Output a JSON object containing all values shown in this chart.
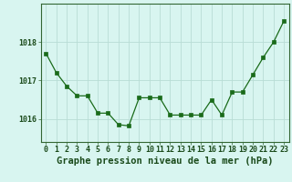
{
  "x": [
    0,
    1,
    2,
    3,
    4,
    5,
    6,
    7,
    8,
    9,
    10,
    11,
    12,
    13,
    14,
    15,
    16,
    17,
    18,
    19,
    20,
    21,
    22,
    23
  ],
  "y": [
    1017.7,
    1017.2,
    1016.85,
    1016.6,
    1016.6,
    1016.15,
    1016.15,
    1015.85,
    1015.82,
    1016.55,
    1016.55,
    1016.55,
    1016.1,
    1016.1,
    1016.1,
    1016.1,
    1016.5,
    1016.1,
    1016.7,
    1016.7,
    1017.15,
    1017.6,
    1018.0,
    1018.55
  ],
  "line_color": "#1a6b1a",
  "marker": "s",
  "marker_size": 2.5,
  "bg_color": "#d8f5f0",
  "grid_color": "#b8ddd5",
  "axis_line_color": "#336633",
  "tick_label_color": "#1a4a1a",
  "xlabel": "Graphe pression niveau de la mer (hPa)",
  "xlabel_color": "#1a4a1a",
  "xlabel_fontsize": 7.5,
  "tick_fontsize": 6.0,
  "ytick_labels": [
    "1016",
    "1017",
    "1018"
  ],
  "ytick_values": [
    1016,
    1017,
    1018
  ],
  "ylim": [
    1015.4,
    1019.0
  ],
  "xlim": [
    -0.5,
    23.5
  ]
}
